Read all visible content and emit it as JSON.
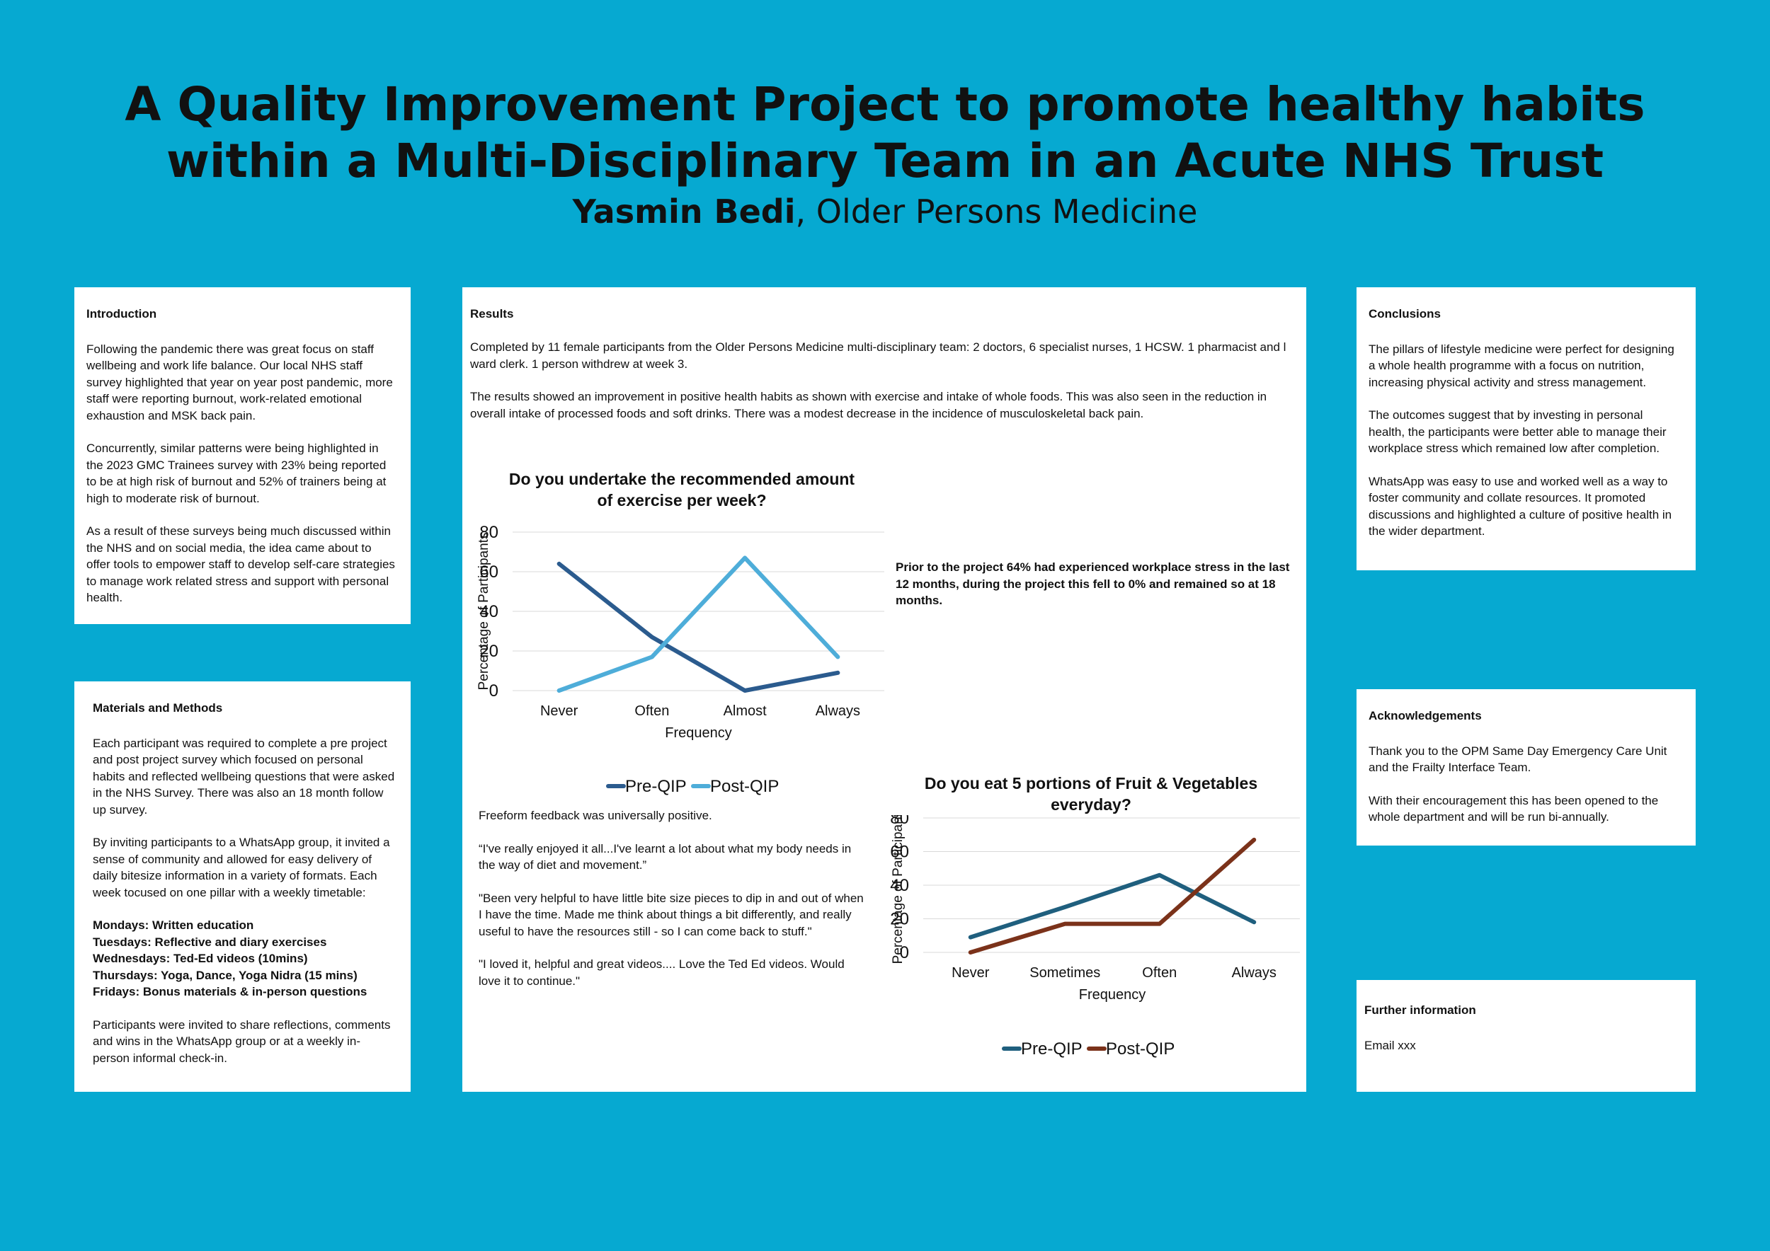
{
  "header": {
    "title_line1": "A Quality Improvement Project to promote healthy habits",
    "title_line2": "within a Multi-Disciplinary Team in an Acute NHS Trust",
    "author": "Yasmin Bedi",
    "affiliation": ", Older Persons Medicine"
  },
  "introduction": {
    "heading": "Introduction",
    "p1": "Following the pandemic there was great focus on staff wellbeing and work life balance. Our local NHS staff survey highlighted that year on year post pandemic, more staff were reporting burnout, work-related emotional exhaustion and MSK back pain.",
    "p2": "Concurrently, similar patterns were being highlighted in the 2023 GMC Trainees survey with 23% being reported to be at high risk of burnout and 52% of trainers being at high to moderate risk of burnout.",
    "p3": "As a result of these surveys being much discussed within the NHS and on social media, the idea came about to offer tools to empower staff to develop self-care strategies to manage work related stress and support with personal health."
  },
  "methods": {
    "heading": "Materials and Methods",
    "p1": "Each participant was required to complete a pre project and post project survey which focused on personal habits and reflected wellbeing questions that were asked in the NHS Survey. There was also an 18 month follow up survey.",
    "p2": "By inviting participants to a WhatsApp group, it invited a sense of community and allowed for easy delivery of daily bitesize information in a variety of formats. Each week tocused on one pillar with a weekly timetable:",
    "schedule": [
      "Mondays: Written education",
      "Tuesdays: Reflective and diary exercises",
      "Wednesdays: Ted-Ed videos (10mins)",
      "Thursdays: Yoga, Dance, Yoga Nidra (15 mins)",
      "Fridays: Bonus materials & in-person questions"
    ],
    "p3": "Participants were invited to share reflections, comments and wins in the WhatsApp group or at a weekly in-person informal check-in."
  },
  "results": {
    "heading": "Results",
    "p1": "Completed by 11 female participants from the Older Persons Medicine multi-disciplinary team: 2 doctors, 6 specialist nurses, 1 HCSW. 1 pharmacist and l ward clerk. 1 person withdrew at week 3.",
    "p2": "The results showed an improvement in positive health habits as shown with exercise and intake of whole foods. This was also seen in the reduction in overall intake of processed foods and soft drinks. There was a modest decrease in the incidence of musculoskeletal back pain.",
    "stress_note": "Prior to the project 64% had experienced workplace stress in the last 12 months, during the project this fell to 0% and remained so at 18 months.",
    "feedback_intro": "Freeform feedback was universally positive.",
    "quote1": "“I've really enjoyed it all...I've learnt a lot about what my body needs in the way of diet and movement.”",
    "quote2": "\"Been very helpful to have little bite size pieces to dip in and out of when I have the time. Made me think about things a bit differently, and really useful to have the resources still - so I can come back to stuff.\"",
    "quote3": "\"I loved it, helpful and great videos.... Love the Ted Ed videos. Would love it to continue.\""
  },
  "conclusions": {
    "heading": "Conclusions",
    "p1": "The pillars of lifestyle medicine were perfect for designing a whole health programme with a focus on nutrition, increasing physical activity and stress management.",
    "p2": "The outcomes suggest that by investing in personal health, the participants were better able to manage their workplace stress which remained low after completion.",
    "p3": "WhatsApp was easy to use and worked well as a way to foster community and collate resources. It promoted discussions and highlighted a culture of positive health in the wider department."
  },
  "acknowledgements": {
    "heading": "Acknowledgements",
    "p1": "Thank you to the OPM Same Day Emergency Care Unit and the Frailty Interface Team.",
    "p2": "With their encouragement this has been opened to the whole department and will be run bi-annually."
  },
  "further": {
    "heading": "Further information",
    "email": "Email xxx"
  },
  "colors": {
    "background": "#06A9D1",
    "chart1_pre": "#2B5B8E",
    "chart1_post": "#4EADD9",
    "chart2_pre": "#1F5F7E",
    "chart2_post": "#7B321A"
  },
  "chart_data": [
    {
      "type": "line",
      "title_line1": "Do you undertake the recommended amount",
      "title_line2": "of exercise per week?",
      "categories": [
        "Never",
        "Often",
        "Almost",
        "Always"
      ],
      "series": [
        {
          "name": "Pre-QIP",
          "values": [
            64,
            27,
            0,
            9
          ]
        },
        {
          "name": "Post-QIP",
          "values": [
            0,
            17,
            67,
            17
          ]
        }
      ],
      "xlabel": "Frequency",
      "ylabel": "Percentage of Participants",
      "ylim": [
        0,
        80
      ],
      "yticks": [
        0,
        20,
        40,
        60,
        80
      ],
      "grid": true,
      "legend": "bottom"
    },
    {
      "type": "line",
      "title_line1": "Do you eat 5 portions of Fruit & Vegetables",
      "title_line2": "everyday?",
      "categories": [
        "Never",
        "Sometimes",
        "Often",
        "Always"
      ],
      "series": [
        {
          "name": "Pre-QIP",
          "values": [
            9,
            27,
            46,
            18
          ]
        },
        {
          "name": "Post-QIP",
          "values": [
            0,
            17,
            17,
            67
          ]
        }
      ],
      "xlabel": "Frequency",
      "ylabel": "Percentage of Participants",
      "ylim": [
        0,
        80
      ],
      "yticks": [
        0,
        20,
        40,
        60,
        80
      ],
      "grid": true,
      "legend": "bottom"
    }
  ]
}
